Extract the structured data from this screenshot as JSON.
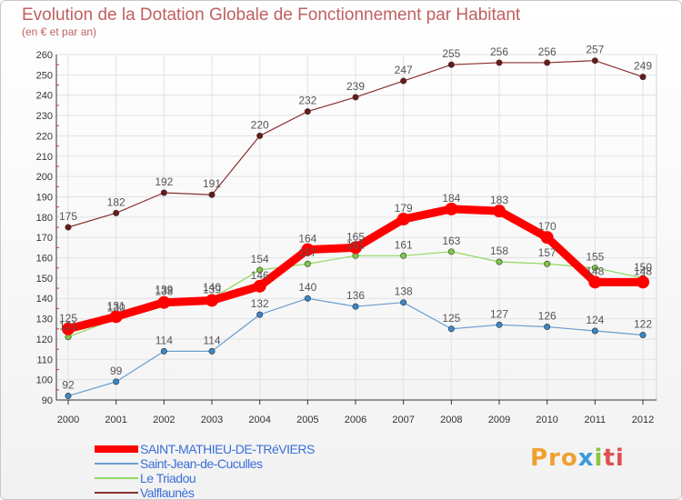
{
  "title": "Evolution de la Dotation Globale de Fonctionnement par Habitant",
  "subtitle": "(en € et par an)",
  "logo": {
    "p1": "Pro",
    "p2": "x",
    "p3": "i",
    "p4": "ti"
  },
  "chart_data": {
    "type": "line",
    "x": [
      "2000",
      "2001",
      "2002",
      "2003",
      "2004",
      "2005",
      "2006",
      "2007",
      "2008",
      "2009",
      "2010",
      "2011",
      "2012"
    ],
    "ylim": [
      90,
      260
    ],
    "yticks": [
      "90",
      "100",
      "110",
      "120",
      "130",
      "140",
      "150",
      "160",
      "170",
      "180",
      "190",
      "200",
      "210",
      "220",
      "230",
      "240",
      "250",
      "260"
    ],
    "grid": true,
    "legend_position": "bottom-left",
    "series": [
      {
        "name": "SAINT-MATHIEU-DE-TRéVIERS",
        "color": "#ff0000",
        "marker": "#ff0000",
        "width": 9,
        "values": [
          125,
          131,
          138,
          139,
          146,
          164,
          165,
          179,
          184,
          183,
          170,
          148,
          148
        ]
      },
      {
        "name": "Saint-Jean-de-Cuculles",
        "color": "#6a9ed0",
        "marker": "#3a86c8",
        "width": 1.2,
        "values": [
          92,
          99,
          114,
          114,
          132,
          140,
          136,
          138,
          125,
          127,
          126,
          124,
          122
        ]
      },
      {
        "name": "Le Triadou",
        "color": "#90d860",
        "marker": "#7cc840",
        "width": 1.2,
        "values": [
          121,
          130,
          139,
          140,
          154,
          157,
          161,
          161,
          163,
          158,
          157,
          155,
          150
        ]
      },
      {
        "name": "Valflaunès",
        "color": "#8a3030",
        "marker": "#6a1a1a",
        "width": 1.2,
        "values": [
          175,
          182,
          192,
          191,
          220,
          232,
          239,
          247,
          255,
          256,
          256,
          257,
          249
        ]
      }
    ]
  }
}
